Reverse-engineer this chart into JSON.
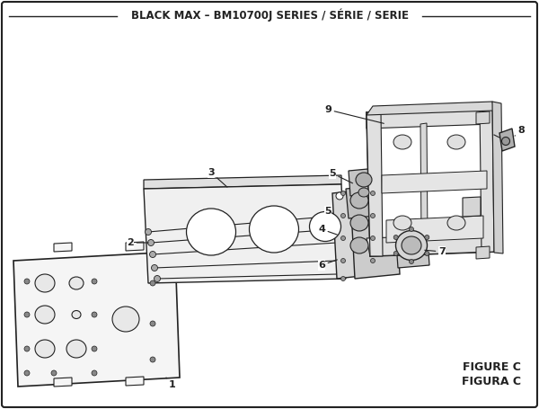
{
  "title": "BLACK MAX – BM10700J SERIES / SÉRIE / SERIE",
  "figure_label": "FIGURE C",
  "figura_label": "FIGURA C",
  "bg_color": "#ffffff",
  "line_color": "#222222",
  "title_fontsize": 8.5,
  "label_fontsize": 8,
  "figure_fontsize": 9
}
